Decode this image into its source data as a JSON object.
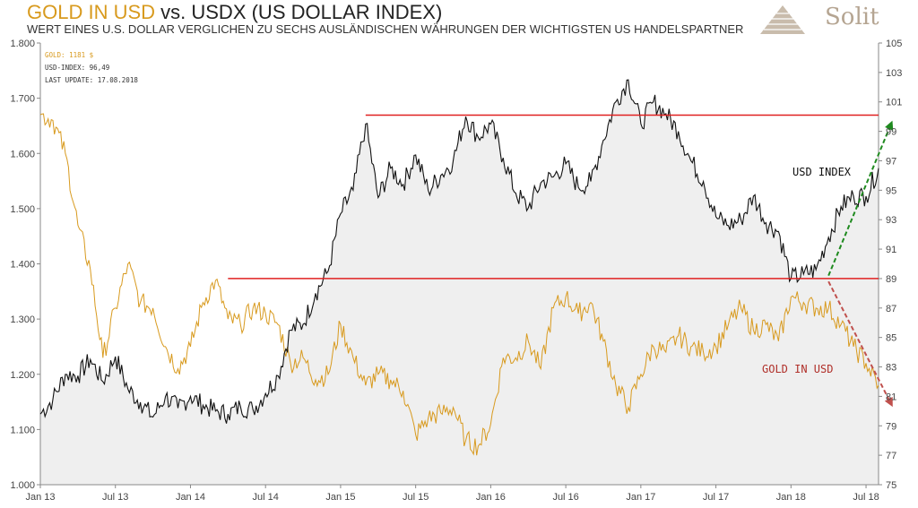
{
  "header": {
    "title_gold": "GOLD IN USD",
    "title_rest": " vs. USDX (US DOLLAR INDEX)",
    "subtitle": "WERT EINES U.S. DOLLAR VERGLICHEN ZU SECHS AUSLÄNDISCHEN WÄHRUNGEN DER WICHTIGSTEN US HANDELSPARTNER"
  },
  "logo": {
    "text": "Solit"
  },
  "info": {
    "gold": "GOLD: 1181 $",
    "usdx": "USD-INDEX: 96,49",
    "update": "LAST UPDATE: 17.08.2018"
  },
  "colors": {
    "gold": "#d89a1e",
    "usdx": "#111111",
    "resistance": "#e02020",
    "up_arrow": "#1f8a1f",
    "down_arrow": "#c0504d",
    "fill": "#efefef"
  },
  "chart_data": {
    "type": "line",
    "x_ticks": [
      "Jan 13",
      "Jul 13",
      "Jan 14",
      "Jul 14",
      "Jan 15",
      "Jul 15",
      "Jan 16",
      "Jul 16",
      "Jan 17",
      "Jul 17",
      "Jan 18",
      "Jul 18"
    ],
    "x_range": [
      "2013-01",
      "2018-08"
    ],
    "left_axis": {
      "ticks": [
        "1.000",
        "1.100",
        "1.200",
        "1.300",
        "1.400",
        "1.500",
        "1.600",
        "1.700",
        "1.800"
      ],
      "range": [
        1000,
        1800
      ]
    },
    "right_axis": {
      "ticks": [
        "75",
        "77",
        "79",
        "81",
        "83",
        "85",
        "87",
        "89",
        "91",
        "93",
        "95",
        "97",
        "99",
        "101",
        "103",
        "105"
      ],
      "range": [
        75,
        105
      ]
    },
    "series": [
      {
        "name": "USD INDEX",
        "axis": "right",
        "x": [
          "2013-01",
          "2013-02",
          "2013-03",
          "2013-04",
          "2013-05",
          "2013-06",
          "2013-07",
          "2013-08",
          "2013-09",
          "2013-10",
          "2013-11",
          "2013-12",
          "2014-01",
          "2014-02",
          "2014-03",
          "2014-04",
          "2014-05",
          "2014-06",
          "2014-07",
          "2014-08",
          "2014-09",
          "2014-10",
          "2014-11",
          "2014-12",
          "2015-01",
          "2015-02",
          "2015-03",
          "2015-04",
          "2015-05",
          "2015-06",
          "2015-07",
          "2015-08",
          "2015-09",
          "2015-10",
          "2015-11",
          "2015-12",
          "2016-01",
          "2016-02",
          "2016-03",
          "2016-04",
          "2016-05",
          "2016-06",
          "2016-07",
          "2016-08",
          "2016-09",
          "2016-10",
          "2016-11",
          "2016-12",
          "2017-01",
          "2017-02",
          "2017-03",
          "2017-04",
          "2017-05",
          "2017-06",
          "2017-07",
          "2017-08",
          "2017-09",
          "2017-10",
          "2017-11",
          "2017-12",
          "2018-01",
          "2018-02",
          "2018-03",
          "2018-04",
          "2018-05",
          "2018-06",
          "2018-07",
          "2018-08"
        ],
        "values": [
          79.8,
          80.8,
          82.5,
          82.4,
          83.5,
          82.0,
          83.7,
          81.5,
          80.6,
          79.6,
          81.0,
          80.2,
          81.0,
          80.4,
          80.0,
          79.8,
          80.3,
          80.1,
          81.2,
          82.4,
          85.5,
          85.9,
          88.0,
          89.5,
          93.4,
          95.0,
          99.5,
          94.5,
          96.5,
          95.4,
          97.4,
          95.0,
          96.0,
          97.0,
          100.0,
          98.6,
          99.5,
          97.2,
          94.8,
          93.8,
          95.5,
          95.9,
          96.8,
          95.2,
          95.6,
          98.4,
          101.0,
          102.5,
          99.5,
          101.0,
          100.2,
          99.0,
          97.0,
          95.6,
          93.2,
          92.6,
          93.0,
          94.6,
          92.8,
          92.2,
          89.0,
          89.3,
          89.6,
          91.8,
          93.9,
          94.6,
          94.6,
          96.5
        ]
      },
      {
        "name": "GOLD IN USD",
        "axis": "left",
        "x": [
          "2013-01",
          "2013-02",
          "2013-03",
          "2013-04",
          "2013-05",
          "2013-06",
          "2013-07",
          "2013-08",
          "2013-09",
          "2013-10",
          "2013-11",
          "2013-12",
          "2014-01",
          "2014-02",
          "2014-03",
          "2014-04",
          "2014-05",
          "2014-06",
          "2014-07",
          "2014-08",
          "2014-09",
          "2014-10",
          "2014-11",
          "2014-12",
          "2015-01",
          "2015-02",
          "2015-03",
          "2015-04",
          "2015-05",
          "2015-06",
          "2015-07",
          "2015-08",
          "2015-09",
          "2015-10",
          "2015-11",
          "2015-12",
          "2016-01",
          "2016-02",
          "2016-03",
          "2016-04",
          "2016-05",
          "2016-06",
          "2016-07",
          "2016-08",
          "2016-09",
          "2016-10",
          "2016-11",
          "2016-12",
          "2017-01",
          "2017-02",
          "2017-03",
          "2017-04",
          "2017-05",
          "2017-06",
          "2017-07",
          "2017-08",
          "2017-09",
          "2017-10",
          "2017-11",
          "2017-12",
          "2018-01",
          "2018-02",
          "2018-03",
          "2018-04",
          "2018-05",
          "2018-06",
          "2018-07",
          "2018-08"
        ],
        "values": [
          1670,
          1660,
          1600,
          1470,
          1390,
          1230,
          1320,
          1400,
          1330,
          1320,
          1250,
          1210,
          1250,
          1330,
          1370,
          1300,
          1290,
          1320,
          1310,
          1290,
          1220,
          1230,
          1190,
          1200,
          1290,
          1230,
          1180,
          1200,
          1190,
          1170,
          1090,
          1120,
          1130,
          1140,
          1080,
          1070,
          1110,
          1230,
          1230,
          1260,
          1210,
          1320,
          1340,
          1310,
          1330,
          1260,
          1180,
          1140,
          1200,
          1250,
          1240,
          1270,
          1250,
          1240,
          1250,
          1290,
          1320,
          1280,
          1290,
          1260,
          1340,
          1330,
          1320,
          1320,
          1290,
          1250,
          1220,
          1180
        ]
      }
    ],
    "annotations": {
      "resistance_lines": [
        {
          "axis": "right",
          "value": 100.1,
          "from": "2015-03",
          "to": "2018-08"
        },
        {
          "axis": "right",
          "value": 89.0,
          "from": "2014-04",
          "to": "2018-08"
        }
      ],
      "arrows": [
        {
          "direction": "up",
          "from": {
            "x": "2018-04",
            "y": 89.2
          },
          "to": {
            "x": "2018-09",
            "y": 99.5
          }
        },
        {
          "direction": "down",
          "from": {
            "x": "2018-04",
            "y": 88.8
          },
          "to": {
            "x": "2018-09",
            "y": 80.5
          }
        }
      ]
    }
  }
}
